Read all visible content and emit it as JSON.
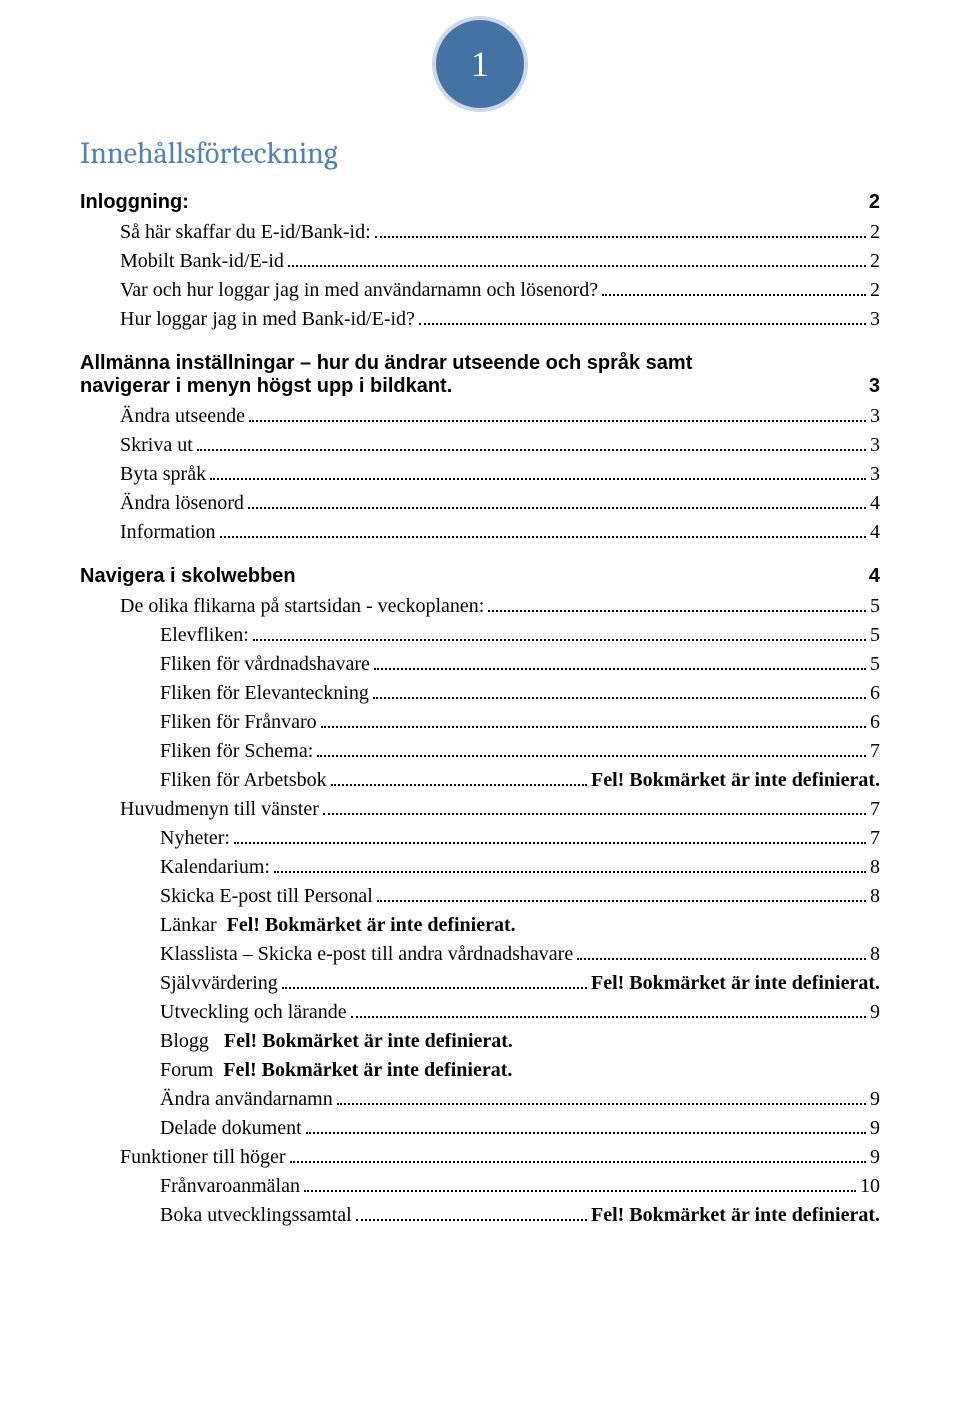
{
  "badge": {
    "number": "1",
    "bg_color": "#4472a4",
    "border_color": "#cfd8e7",
    "text_color": "#ffffff"
  },
  "title": {
    "text": "Innehållsförteckning",
    "color": "#4f81bd"
  },
  "sections": {
    "s1": {
      "label": "Inloggning:",
      "page": "2"
    },
    "s1_items": {
      "i1": {
        "label": "Så här skaffar du E-id/Bank-id:",
        "page": "2"
      },
      "i2": {
        "label": "Mobilt Bank-id/E-id",
        "page": "2"
      },
      "i3": {
        "label": "Var och hur loggar jag in med användarnamn och lösenord?",
        "page": "2"
      },
      "i4": {
        "label": "Hur loggar jag in med Bank-id/E-id?",
        "page": "3"
      }
    },
    "s2": {
      "line1": "Allmänna inställningar – hur du ändrar utseende och språk samt",
      "line2": "navigerar i menyn högst upp i bildkant.",
      "page": "3"
    },
    "s2_items": {
      "i1": {
        "label": "Ändra utseende",
        "page": "3"
      },
      "i2": {
        "label": "Skriva ut",
        "page": "3"
      },
      "i3": {
        "label": "Byta språk",
        "page": "3"
      },
      "i4": {
        "label": "Ändra lösenord",
        "page": "4"
      },
      "i5": {
        "label": "Information",
        "page": "4"
      }
    },
    "s3": {
      "label": "Navigera i skolwebben",
      "page": "4"
    },
    "s3_items": {
      "i1": {
        "label": "De olika flikarna på startsidan - veckoplanen:",
        "page": "5"
      },
      "i2": {
        "label": "Elevfliken:",
        "page": "5"
      },
      "i3": {
        "label": "Fliken för vårdnadshavare",
        "page": "5"
      },
      "i4": {
        "label": "Fliken för Elevanteckning",
        "page": "6"
      },
      "i5": {
        "label": "Fliken för Frånvaro",
        "page": "6"
      },
      "i6": {
        "label": "Fliken för Schema:",
        "page": "7"
      },
      "i7": {
        "label": "Fliken för Arbetsbok",
        "error": "Fel! Bokmärket är inte definierat."
      },
      "h1": {
        "label": "Huvudmenyn till vänster",
        "page": "7"
      },
      "i8": {
        "label": "Nyheter:",
        "page": "7"
      },
      "i9": {
        "label": "Kalendarium:",
        "page": "8"
      },
      "i10": {
        "label": "Skicka E-post till Personal",
        "page": "8"
      },
      "i11": {
        "label": "Länkar",
        "error": "Fel! Bokmärket är inte definierat."
      },
      "i12": {
        "label": "Klasslista – Skicka e-post till andra vårdnadshavare",
        "page": "8"
      },
      "i13": {
        "label": "Självvärdering",
        "error": "Fel! Bokmärket är inte definierat."
      },
      "i14": {
        "label": "Utveckling och lärande",
        "page": "9"
      },
      "i15": {
        "label": "Blogg",
        "error": "Fel! Bokmärket är inte definierat."
      },
      "i16": {
        "label": "Forum",
        "error": "Fel! Bokmärket är inte definierat."
      },
      "i17": {
        "label": "Ändra användarnamn",
        "page": "9"
      },
      "i18": {
        "label": "Delade dokument",
        "page": "9"
      },
      "h2": {
        "label": "Funktioner till höger",
        "page": "9"
      },
      "i19": {
        "label": "Frånvaroanmälan",
        "page": "10"
      },
      "i20": {
        "label": "Boka utvecklingssamtal",
        "error": "Fel! Bokmärket är inte definierat."
      }
    }
  }
}
